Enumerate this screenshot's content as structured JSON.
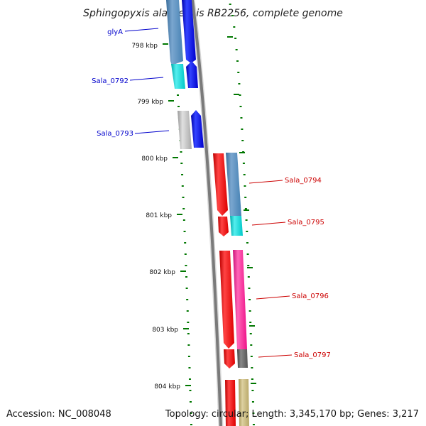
{
  "title": "Sphingopyxis alaskensis RB2256, complete genome",
  "accession": "Accession: NC_008048",
  "topology": "Topology: circular; Length: 3,345,170 bp; Genes: 3,217",
  "kbp_labels": [
    "798 kbp",
    "799 kbp",
    "800 kbp",
    "801 kbp",
    "802 kbp",
    "803 kbp",
    "804 kbp"
  ],
  "genes": [
    {
      "name": "glyA",
      "color": "#0000cc"
    },
    {
      "name": "Sala_0792",
      "color": "#0000cc"
    },
    {
      "name": "Sala_0793",
      "color": "#0000cc"
    },
    {
      "name": "Sala_0794",
      "color": "#cc0000"
    },
    {
      "name": "Sala_0795",
      "color": "#cc0000"
    },
    {
      "name": "Sala_0796",
      "color": "#cc0000"
    },
    {
      "name": "Sala_0797",
      "color": "#cc0000"
    }
  ],
  "colors": {
    "backbone": "#808080",
    "tick": "#007700",
    "forward_strand": "#0000ff",
    "reverse_strand": "#ff0000",
    "gene_steelblue": "#4682b4",
    "gene_cyan": "#00cccc",
    "gene_gray": "#b0b0b0",
    "gene_pink": "#ff1493",
    "gene_darkgray": "#606060",
    "gene_khaki": "#c8b878"
  }
}
